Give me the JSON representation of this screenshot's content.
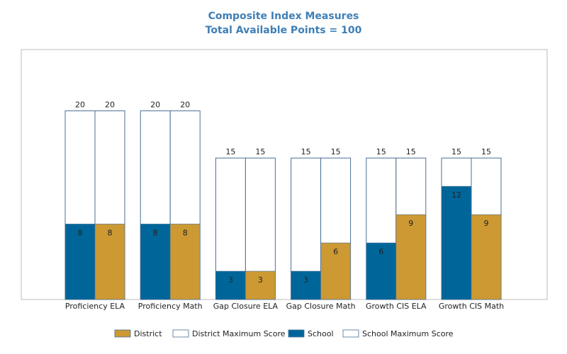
{
  "chart_data": {
    "type": "bar",
    "title": "Composite Index Measures",
    "subtitle": "Total Available Points = 100",
    "categories": [
      "Proficiency ELA",
      "Proficiency Math",
      "Gap Closure ELA",
      "Gap Closure Math",
      "Growth CIS ELA",
      "Growth CIS Math"
    ],
    "series": [
      {
        "name": "School",
        "values": [
          8,
          8,
          3,
          3,
          6,
          12
        ]
      },
      {
        "name": "School Maximum Score",
        "values": [
          20,
          20,
          15,
          15,
          15,
          15
        ]
      },
      {
        "name": "District",
        "values": [
          8,
          8,
          3,
          6,
          9,
          9
        ]
      },
      {
        "name": "District Maximum Score",
        "values": [
          20,
          20,
          15,
          15,
          15,
          15
        ]
      }
    ],
    "ylim": [
      0,
      26.5
    ],
    "grid": false,
    "legend_position": "bottom",
    "legend_order": [
      "District",
      "District Maximum Score",
      "School",
      "School Maximum Score"
    ],
    "colors": {
      "School": "#006699",
      "District": "#cc9933",
      "max_fill": "#ffffff",
      "max_stroke": "#4a6f96",
      "plot_border": "#bbbbbb",
      "title": "#3f7fb6"
    }
  }
}
